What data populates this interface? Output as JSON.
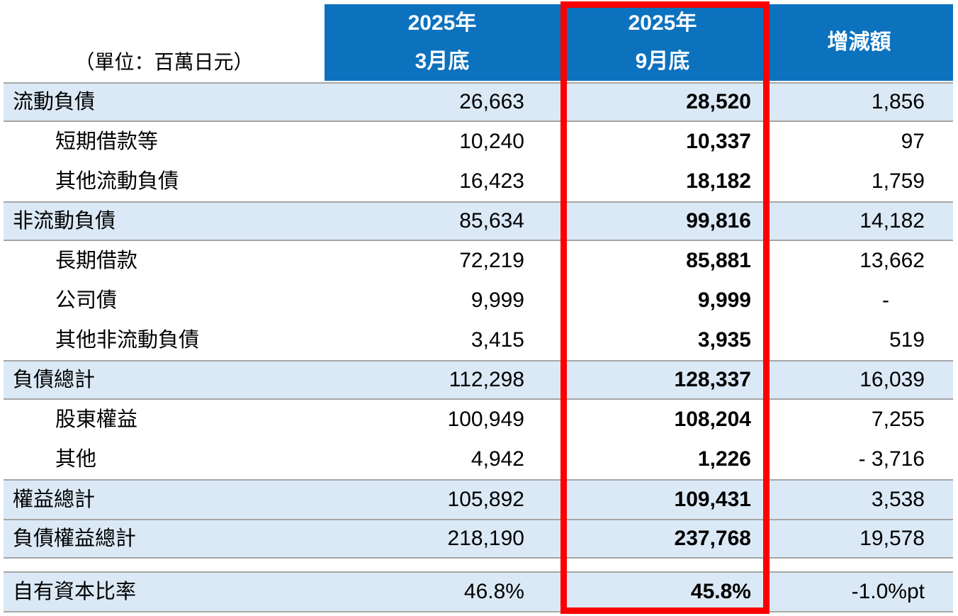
{
  "table": {
    "unit_label": "（單位：百萬日元）",
    "header": {
      "mar": {
        "year": "2025年",
        "period": "3月底"
      },
      "sep": {
        "year": "2025年",
        "period": "9月底"
      },
      "change": "增減額"
    },
    "rows": [
      {
        "label": "流動負債",
        "mar": "26,663",
        "sep": "28,520",
        "chg": "1,856"
      },
      {
        "label": "短期借款等",
        "mar": "10,240",
        "sep": "10,337",
        "chg": "97"
      },
      {
        "label": "其他流動負債",
        "mar": "16,423",
        "sep": "18,182",
        "chg": "1,759"
      },
      {
        "label": "非流動負債",
        "mar": "85,634",
        "sep": "99,816",
        "chg": "14,182"
      },
      {
        "label": "長期借款",
        "mar": "72,219",
        "sep": "85,881",
        "chg": "13,662"
      },
      {
        "label": "公司債",
        "mar": "9,999",
        "sep": "9,999",
        "chg": "-"
      },
      {
        "label": "其他非流動負債",
        "mar": "3,415",
        "sep": "3,935",
        "chg": "519"
      },
      {
        "label": "負債總計",
        "mar": "112,298",
        "sep": "128,337",
        "chg": "16,039"
      },
      {
        "label": "股東權益",
        "mar": "100,949",
        "sep": "108,204",
        "chg": "7,255"
      },
      {
        "label": "其他",
        "mar": "4,942",
        "sep": "1,226",
        "chg": "- 3,716"
      },
      {
        "label": "權益總計",
        "mar": "105,892",
        "sep": "109,431",
        "chg": "3,538"
      },
      {
        "label": "負債權益總計",
        "mar": "218,190",
        "sep": "237,768",
        "chg": "19,578"
      },
      {
        "label": "自有資本比率",
        "mar": "46.8%",
        "sep": "45.8%",
        "chg": "-1.0%pt"
      }
    ]
  },
  "colors": {
    "header_blue": "#0D72BE",
    "row_shade": "#DBE9F6",
    "divider_gray": "#A6A6A6",
    "highlight_red": "#FB0000",
    "text_black": "#000000"
  }
}
